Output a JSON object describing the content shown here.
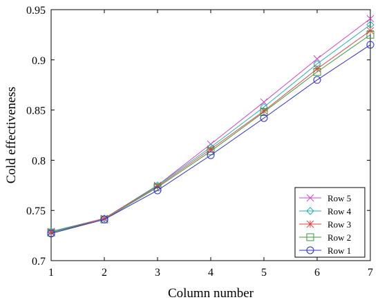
{
  "chart_data": {
    "type": "line",
    "title": "",
    "xlabel": "Column number",
    "ylabel": "Cold effectiveness",
    "x": [
      1,
      2,
      3,
      4,
      5,
      6,
      7
    ],
    "xlim": [
      1,
      7
    ],
    "ylim": [
      0.7,
      0.95
    ],
    "xticks": [
      "1",
      "2",
      "3",
      "4",
      "5",
      "6",
      "7"
    ],
    "yticks": [
      "0.7",
      "0.75",
      "0.8",
      "0.85",
      "0.9",
      "0.95"
    ],
    "grid": false,
    "legend_position": "bottom-right",
    "series": [
      {
        "name": "Row 5",
        "color": "#cc44cc",
        "marker": "x",
        "values": [
          0.729,
          0.742,
          0.775,
          0.816,
          0.858,
          0.901,
          0.941
        ]
      },
      {
        "name": "Row 4",
        "color": "#20b0b0",
        "marker": "diamond",
        "values": [
          0.729,
          0.742,
          0.775,
          0.813,
          0.853,
          0.896,
          0.935
        ]
      },
      {
        "name": "Row 3",
        "color": "#e04040",
        "marker": "asterisk",
        "values": [
          0.728,
          0.742,
          0.774,
          0.811,
          0.849,
          0.891,
          0.929
        ]
      },
      {
        "name": "Row 2",
        "color": "#3a9a3a",
        "marker": "square",
        "values": [
          0.728,
          0.741,
          0.773,
          0.809,
          0.848,
          0.888,
          0.925
        ]
      },
      {
        "name": "Row 1",
        "color": "#2a2ad8",
        "marker": "circle",
        "values": [
          0.727,
          0.741,
          0.77,
          0.805,
          0.842,
          0.88,
          0.915
        ]
      }
    ]
  }
}
